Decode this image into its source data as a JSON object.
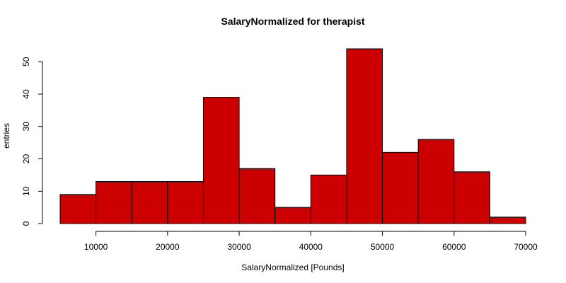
{
  "chart_data": {
    "type": "bar",
    "subtype": "histogram",
    "title": "SalaryNormalized for therapist",
    "xlabel": "SalaryNormalized [Pounds]",
    "ylabel": "entries",
    "bar_color": "#cc0000",
    "grid": false,
    "legend": "none",
    "xlim": [
      5000,
      70000
    ],
    "ylim": [
      0,
      54
    ],
    "x_ticks": [
      10000,
      20000,
      30000,
      40000,
      50000,
      60000,
      70000
    ],
    "y_ticks": [
      0,
      10,
      20,
      30,
      40,
      50
    ],
    "bins": [
      {
        "start": 5000,
        "end": 10000,
        "value": 9
      },
      {
        "start": 10000,
        "end": 15000,
        "value": 13
      },
      {
        "start": 15000,
        "end": 20000,
        "value": 13
      },
      {
        "start": 20000,
        "end": 25000,
        "value": 13
      },
      {
        "start": 25000,
        "end": 30000,
        "value": 39
      },
      {
        "start": 30000,
        "end": 35000,
        "value": 17
      },
      {
        "start": 35000,
        "end": 40000,
        "value": 5
      },
      {
        "start": 40000,
        "end": 45000,
        "value": 15
      },
      {
        "start": 45000,
        "end": 50000,
        "value": 54
      },
      {
        "start": 50000,
        "end": 55000,
        "value": 22
      },
      {
        "start": 55000,
        "end": 60000,
        "value": 26
      },
      {
        "start": 60000,
        "end": 65000,
        "value": 16
      },
      {
        "start": 65000,
        "end": 70000,
        "value": 2
      }
    ]
  }
}
